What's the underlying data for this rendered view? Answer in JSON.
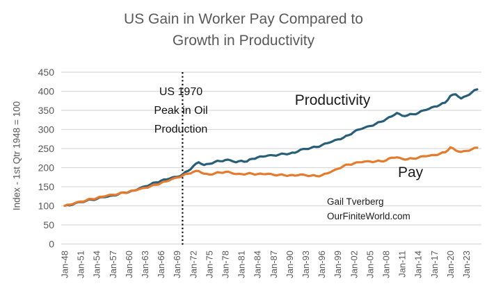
{
  "title": {
    "line1": "US Gain in Worker Pay Compared to",
    "line2": "Growth in Productivity"
  },
  "y_axis_title": "Index - 1st Qtr 1948 = 100",
  "annotation": {
    "line1": "US 1970",
    "line2": "Peak in Oil",
    "line3": "Production"
  },
  "series_labels": {
    "productivity": "Productivity",
    "pay": "Pay"
  },
  "credit": {
    "line1": "Gail Tverberg",
    "line2": "OurFiniteWorld.com"
  },
  "colors": {
    "productivity_line": "#275E78",
    "pay_line": "#E67B2E",
    "grid": "#D9D9D9",
    "axis_text": "#595959",
    "title_text": "#595959",
    "annotation_text": "#111111",
    "vline": "#000000",
    "background": "#FFFFFF"
  },
  "chart_data": {
    "type": "line",
    "title": "US Gain in Worker Pay Compared to Growth in Productivity",
    "xlabel": "",
    "ylabel": "Index - 1st Qtr 1948 = 100",
    "ylim": [
      0,
      450
    ],
    "yticks": [
      0,
      50,
      100,
      150,
      200,
      250,
      300,
      350,
      400,
      450
    ],
    "grid": "horizontal",
    "legend_position": "inline-labels",
    "x_start_year": 1948,
    "x_end_year": 2025,
    "xtick_years": [
      1948,
      1951,
      1954,
      1957,
      1960,
      1963,
      1966,
      1969,
      1972,
      1975,
      1978,
      1981,
      1984,
      1987,
      1990,
      1993,
      1996,
      1999,
      2002,
      2005,
      2008,
      2011,
      2014,
      2017,
      2020,
      2023
    ],
    "xtick_labels": [
      "Jan-48",
      "Jan-51",
      "Jan-54",
      "Jan-57",
      "Jan-60",
      "Jan-63",
      "Jan-66",
      "Jan-69",
      "Jan-72",
      "Jan-75",
      "Jan-78",
      "Jan-81",
      "Jan-84",
      "Jan-87",
      "Jan-90",
      "Jan-93",
      "Jan-96",
      "Jan-99",
      "Jan-02",
      "Jan-05",
      "Jan-08",
      "Jan-11",
      "Jan-14",
      "Jan-17",
      "Jan-20",
      "Jan-23"
    ],
    "vline": {
      "x_year": 1970,
      "style": "dotted",
      "label": "US 1970 Peak in Oil Production"
    },
    "series": [
      {
        "name": "Productivity",
        "color": "#275E78",
        "x_years_step": 1,
        "values": [
          100,
          101,
          107,
          110,
          113,
          116,
          118,
          123,
          124,
          127,
          130,
          135,
          136,
          140,
          146,
          151,
          156,
          161,
          166,
          169,
          174,
          176,
          182,
          191,
          204,
          214,
          207,
          210,
          215,
          217,
          220,
          219,
          214,
          218,
          216,
          223,
          227,
          229,
          232,
          232,
          234,
          236,
          237,
          239,
          247,
          249,
          252,
          254,
          259,
          264,
          269,
          274,
          278,
          285,
          294,
          300,
          305,
          309,
          314,
          320,
          327,
          334,
          343,
          336,
          337,
          340,
          343,
          350,
          354,
          360,
          364,
          370,
          388,
          392,
          381,
          388,
          397,
          405
        ]
      },
      {
        "name": "Pay",
        "color": "#E67B2E",
        "x_years_step": 1,
        "values": [
          100,
          103,
          108,
          111,
          114,
          118,
          120,
          124,
          127,
          129,
          131,
          134,
          137,
          140,
          144,
          147,
          151,
          155,
          160,
          164,
          170,
          174,
          179,
          184,
          189,
          191,
          184,
          182,
          185,
          187,
          189,
          187,
          183,
          183,
          184,
          184,
          183,
          183,
          184,
          181,
          181,
          180,
          180,
          179,
          182,
          180,
          179,
          178,
          180,
          185,
          191,
          197,
          204,
          208,
          211,
          214,
          216,
          216,
          216,
          217,
          219,
          226,
          227,
          223,
          222,
          224,
          226,
          230,
          231,
          233,
          236,
          240,
          253,
          245,
          241,
          244,
          248,
          252
        ]
      }
    ]
  }
}
